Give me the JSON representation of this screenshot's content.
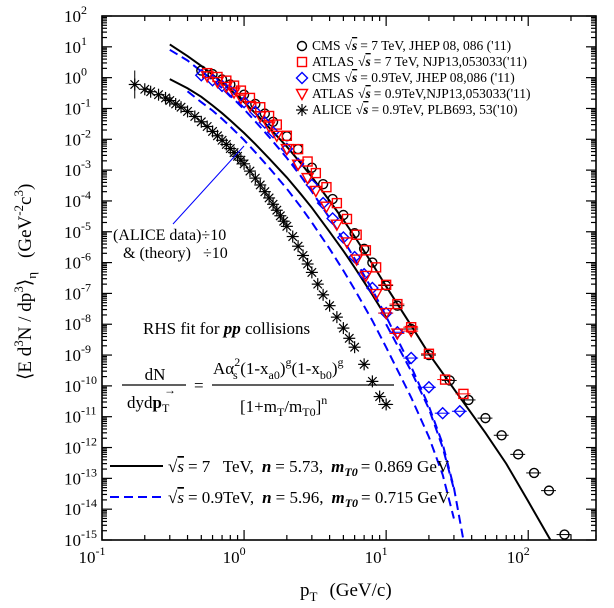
{
  "chart_data": {
    "type": "scatter",
    "xscale": "log",
    "yscale": "log",
    "xlim": [
      0.1,
      300
    ],
    "ylim": [
      1e-15,
      100
    ],
    "grid": false,
    "legend_position": "top-right",
    "xlabel": {
      "main": "p",
      "sub": "T",
      "unit": "(GeV/c)"
    },
    "ylabel": {
      "quantity": "⟨E d",
      "exp3a": "3",
      "mid": "N / dp",
      "exp3b": "3",
      "close": "⟩",
      "sub": "η",
      "unit": "(GeV",
      "unit_exp1": "-2",
      "unit_c": "c",
      "unit_exp2": "3",
      "unit_close": ")"
    },
    "xticks": [
      {
        "value": 0.1,
        "base": "10",
        "exp": "-1"
      },
      {
        "value": 1,
        "base": "10",
        "exp": "0"
      },
      {
        "value": 10,
        "base": "10",
        "exp": "1"
      },
      {
        "value": 100,
        "base": "10",
        "exp": "2"
      }
    ],
    "yticks": [
      {
        "value": 100,
        "base": "10",
        "exp": "2"
      },
      {
        "value": 10,
        "base": "10",
        "exp": "1"
      },
      {
        "value": 1,
        "base": "10",
        "exp": "0"
      },
      {
        "value": 0.1,
        "base": "10",
        "exp": "-1"
      },
      {
        "value": 0.01,
        "base": "10",
        "exp": "-2"
      },
      {
        "value": 0.001,
        "base": "10",
        "exp": "-3"
      },
      {
        "value": 0.0001,
        "base": "10",
        "exp": "-4"
      },
      {
        "value": 1e-05,
        "base": "10",
        "exp": "-5"
      },
      {
        "value": 1e-06,
        "base": "10",
        "exp": "-6"
      },
      {
        "value": 1e-07,
        "base": "10",
        "exp": "-7"
      },
      {
        "value": 1e-08,
        "base": "10",
        "exp": "-8"
      },
      {
        "value": 1e-09,
        "base": "10",
        "exp": "-9"
      },
      {
        "value": 1e-10,
        "base": "10",
        "exp": "-10"
      },
      {
        "value": 1e-11,
        "base": "10",
        "exp": "-11"
      },
      {
        "value": 1e-12,
        "base": "10",
        "exp": "-12"
      },
      {
        "value": 1e-13,
        "base": "10",
        "exp": "-13"
      },
      {
        "value": 1e-14,
        "base": "10",
        "exp": "-14"
      },
      {
        "value": 1e-15,
        "base": "10",
        "exp": "-15"
      }
    ],
    "series": [
      {
        "name": "CMS",
        "energy": "7 TeV",
        "ref": "JHEP 08, 086 ('11)",
        "marker": "circle",
        "color": "#000000",
        "x": [
          0.5,
          0.6,
          0.7,
          0.8,
          1.0,
          1.2,
          1.4,
          1.6,
          2.0,
          2.4,
          3.0,
          3.6,
          4.2,
          5.0,
          6.0,
          7.0,
          8.0,
          10.0,
          12.0,
          15.0,
          20.0,
          28.0,
          38.0,
          50.0,
          65.0,
          85.0,
          110.0,
          140.0,
          180.0
        ],
        "y": [
          1.7,
          1.3,
          0.87,
          0.6,
          0.28,
          0.14,
          0.068,
          0.037,
          0.0125,
          0.0048,
          0.0012,
          0.00035,
          0.000115,
          3.5e-05,
          9e-06,
          2.8e-06,
          1e-06,
          1.8e-07,
          4e-08,
          7e-09,
          1e-09,
          1.5e-10,
          3.5e-11,
          9e-12,
          2.5e-12,
          6e-13,
          1.5e-13,
          4e-14,
          1.5e-15
        ]
      },
      {
        "name": "ATLAS",
        "energy": "7 TeV",
        "ref": "NJP13,053033('11)",
        "marker": "square",
        "color": "#ff0000",
        "x": [
          0.55,
          0.65,
          0.75,
          0.85,
          0.95,
          1.1,
          1.3,
          1.5,
          1.7,
          2.0,
          2.4,
          2.8,
          3.2,
          3.8,
          4.5,
          5.3,
          6.2,
          7.2,
          8.5,
          10.0,
          12.0,
          15.0,
          20.0,
          26.0,
          35.0
        ],
        "y": [
          1.4,
          1.05,
          0.8,
          0.55,
          0.38,
          0.22,
          0.11,
          0.057,
          0.03,
          0.013,
          0.0048,
          0.0019,
          0.0008,
          0.00028,
          8.5e-05,
          2.6e-05,
          8e-06,
          2.5e-06,
          7e-07,
          1.9e-07,
          4.5e-08,
          8e-09,
          1.1e-09,
          1.6e-10,
          5.5e-11
        ]
      },
      {
        "name": "CMS",
        "energy": "0.9TeV",
        "ref": "JHEP 08,086 ('11)",
        "marker": "diamond",
        "color": "#0000ff",
        "x": [
          0.5,
          0.6,
          0.7,
          0.8,
          1.0,
          1.2,
          1.4,
          1.6,
          2.0,
          2.4,
          3.0,
          3.6,
          4.2,
          5.0,
          6.0,
          7.0,
          8.0,
          10.0,
          12.0,
          15.0,
          20.0,
          25.0,
          33.0
        ],
        "y": [
          1.2,
          0.82,
          0.54,
          0.36,
          0.16,
          0.078,
          0.035,
          0.017,
          0.0049,
          0.0016,
          0.00033,
          8.5e-05,
          2.7e-05,
          6.5e-06,
          1.5e-06,
          4.2e-07,
          1.5e-07,
          2.3e-08,
          5.5e-09,
          8e-10,
          9e-11,
          1.3e-11,
          1.5e-11
        ]
      },
      {
        "name": "ATLAS",
        "energy": "0.9TeV",
        "ref": "NJP13,053033('11)",
        "marker": "triangle-down",
        "color": "#ff0000",
        "x": [
          0.55,
          0.65,
          0.75,
          0.85,
          0.95,
          1.1,
          1.3,
          1.5,
          1.7,
          2.0,
          2.4,
          2.8,
          3.2,
          3.8,
          4.5,
          5.3,
          6.2,
          7.2,
          8.5,
          10.0,
          12.0,
          15.0
        ],
        "y": [
          1.1,
          0.72,
          0.5,
          0.33,
          0.22,
          0.12,
          0.055,
          0.026,
          0.013,
          0.0048,
          0.0015,
          0.00055,
          0.00021,
          6.5e-05,
          1.7e-05,
          4.5e-06,
          1.25e-06,
          3.7e-07,
          9.5e-08,
          2.3e-08,
          5e-09,
          6e-09
        ]
      },
      {
        "name": "ALICE",
        "energy": "0.9TeV",
        "ref": "PLB693, 53('10)",
        "marker": "asterisk",
        "color": "#000000",
        "scale_note": "data ÷10",
        "x": [
          0.17,
          0.2,
          0.22,
          0.25,
          0.28,
          0.3,
          0.33,
          0.36,
          0.4,
          0.45,
          0.5,
          0.55,
          0.6,
          0.65,
          0.7,
          0.75,
          0.8,
          0.85,
          0.9,
          0.95,
          1.0,
          1.1,
          1.2,
          1.3,
          1.4,
          1.5,
          1.6,
          1.7,
          1.8,
          1.9,
          2.0,
          2.2,
          2.4,
          2.6,
          2.8,
          3.0,
          3.3,
          3.6,
          4.0,
          4.5,
          5.0,
          5.5,
          6.0,
          7.0,
          8.0,
          9.0,
          10.0
        ],
        "y": [
          0.6,
          0.42,
          0.35,
          0.28,
          0.22,
          0.18,
          0.14,
          0.11,
          0.08,
          0.055,
          0.037,
          0.026,
          0.018,
          0.013,
          0.0093,
          0.0068,
          0.005,
          0.0037,
          0.0028,
          0.0021,
          0.0016,
          0.00093,
          0.00055,
          0.00033,
          0.0002,
          0.000125,
          7.8e-05,
          5e-05,
          3.3e-05,
          2.2e-05,
          1.5e-05,
          7e-06,
          3.4e-06,
          1.7e-06,
          9e-07,
          4.8e-07,
          2e-07,
          9e-08,
          4e-08,
          1.7e-08,
          7.5e-09,
          3.5e-09,
          1.8e-09,
          5e-10,
          1.4e-10,
          4.5e-11,
          2.5e-11
        ]
      }
    ],
    "fits": [
      {
        "name": "√s = 7 TeV",
        "style": "solid",
        "color": "#000000",
        "n": 5.73,
        "mT0": 0.869,
        "x": [
          0.3,
          0.4,
          0.5,
          0.6,
          0.7,
          0.8,
          1.0,
          1.2,
          1.5,
          2.0,
          2.5,
          3.0,
          4.0,
          5.0,
          6.0,
          8.0,
          10.0,
          15.0,
          20.0,
          30.0,
          50.0,
          70.0,
          100.0,
          150.0,
          180.0
        ],
        "y": [
          12.0,
          5.0,
          2.4,
          1.25,
          0.7,
          0.41,
          0.16,
          0.07,
          0.024,
          0.0058,
          0.0017,
          0.0006,
          0.0001,
          2.4e-05,
          7e-06,
          9e-07,
          1.7e-07,
          9e-09,
          1.1e-09,
          8e-11,
          3e-12,
          3e-13,
          1.8e-14,
          7e-16,
          8e-17
        ]
      },
      {
        "name": "√s = 7 TeV (theory ÷10)",
        "style": "solid",
        "color": "#000000",
        "x": [
          0.3,
          0.4,
          0.5,
          0.6,
          0.7,
          0.8,
          1.0,
          1.2,
          1.5,
          2.0,
          2.5,
          3.0,
          4.0,
          5.0,
          6.0,
          8.0,
          10.0
        ],
        "y": [
          0.9,
          0.45,
          0.24,
          0.125,
          0.07,
          0.041,
          0.016,
          0.007,
          0.0024,
          0.00058,
          0.00017,
          6e-05,
          1e-05,
          2.4e-06,
          7e-07,
          9e-08,
          1.7e-08
        ]
      },
      {
        "name": "√s = 0.9TeV",
        "style": "dashed",
        "color": "#0000ff",
        "n": 5.96,
        "mT0": 0.715,
        "x": [
          0.3,
          0.4,
          0.5,
          0.6,
          0.7,
          0.8,
          1.0,
          1.2,
          1.5,
          2.0,
          2.5,
          3.0,
          4.0,
          5.0,
          6.0,
          8.0,
          10.0,
          15.0,
          20.0,
          25.0,
          30.0,
          35.0
        ],
        "y": [
          8.0,
          3.6,
          1.6,
          0.85,
          0.46,
          0.26,
          0.094,
          0.038,
          0.012,
          0.0025,
          0.00065,
          0.0002,
          2.8e-05,
          5.5e-06,
          1.35e-06,
          1.3e-07,
          1.8e-08,
          4.2e-10,
          2.2e-11,
          1.3e-12,
          5e-14,
          1e-15
        ]
      },
      {
        "name": "√s = 0.9TeV (theory ÷10)",
        "style": "dashed",
        "color": "#0000ff",
        "x": [
          0.4,
          0.5,
          0.6,
          0.7,
          0.8,
          1.0,
          1.2,
          1.5,
          2.0,
          2.5,
          3.0,
          4.0,
          5.0,
          6.0,
          8.0,
          10.0,
          15.0,
          20.0,
          25.0,
          30.0
        ],
        "y": [
          0.36,
          0.16,
          0.085,
          0.046,
          0.026,
          0.0094,
          0.0038,
          0.0012,
          0.00025,
          6.5e-05,
          2e-05,
          2.8e-06,
          5.5e-07,
          1.35e-07,
          1.3e-08,
          1.8e-09,
          4.2e-11,
          2.2e-12,
          1.3e-13,
          5e-15
        ]
      },
      {
        "name": "√s = 0.9TeV (upper branch)",
        "style": "dashed",
        "color": "#0000ff",
        "x": [
          10.0,
          15.0,
          20.0,
          25.0,
          30.0
        ],
        "y": [
          1e-08,
          3e-10,
          1.8e-11,
          1e-12,
          4.5e-14
        ]
      }
    ],
    "legend": [
      {
        "exp": "CMS",
        "rs": "s",
        "eq": "= 7 TeV, JHEP 08, 086 ('11)",
        "marker": "circle",
        "color": "#000000"
      },
      {
        "exp": "ATLAS",
        "rs": "s",
        "eq": "= 7 TeV, NJP13,053033('11)",
        "marker": "square",
        "color": "#ff0000"
      },
      {
        "exp": "CMS",
        "rs": "s",
        "eq": "= 0.9TeV, JHEP 08,086 ('11)",
        "marker": "diamond",
        "color": "#0000ff"
      },
      {
        "exp": "ATLAS",
        "rs": "s",
        "eq": "= 0.9TeV,NJP13,053033('11)",
        "marker": "triangle-down",
        "color": "#ff0000"
      },
      {
        "exp": "ALICE",
        "rs": "s",
        "eq": "= 0.9TeV, PLB693, 53('10)",
        "marker": "asterisk",
        "color": "#000000"
      }
    ],
    "annotation": {
      "line1": "(ALICE data)÷10",
      "line2": "& (theory)   ÷10"
    },
    "fit_title": {
      "prefix": "RHS fit for ",
      "pp": "pp",
      "suffix": " collisions"
    },
    "formula": {
      "lhs_num": "dN",
      "lhs_den": "dyd",
      "lhs_den_p": "p",
      "lhs_den_sub": "T",
      "eq": "=",
      "num_a": "Aα",
      "num_s": "s",
      "num_2": "2",
      "num_b": "(1-x",
      "num_a0": "a0",
      "num_c": ")",
      "num_g1": "g",
      "num_d": "(1-x",
      "num_b0": "b0",
      "num_e": ")",
      "num_g2": "g",
      "den_a": "[1+m",
      "den_T": "T",
      "den_b": "/m",
      "den_T0": "T0",
      "den_c": "]",
      "den_n": "n"
    },
    "fit_legend": [
      {
        "rs": "s",
        "eq": "= 7   TeV,",
        "n_label": "n",
        "n_eq": "= 5.73,",
        "m_label": "m",
        "m_sub": "T0",
        "m_eq": "= 0.869 GeV",
        "style": "solid",
        "color": "#000000"
      },
      {
        "rs": "s",
        "eq": "= 0.9TeV,",
        "n_label": "n",
        "n_eq": "= 5.96,",
        "m_label": "m",
        "m_sub": "T0",
        "m_eq": "= 0.715 GeV",
        "style": "dashed",
        "color": "#0000ff"
      }
    ]
  }
}
